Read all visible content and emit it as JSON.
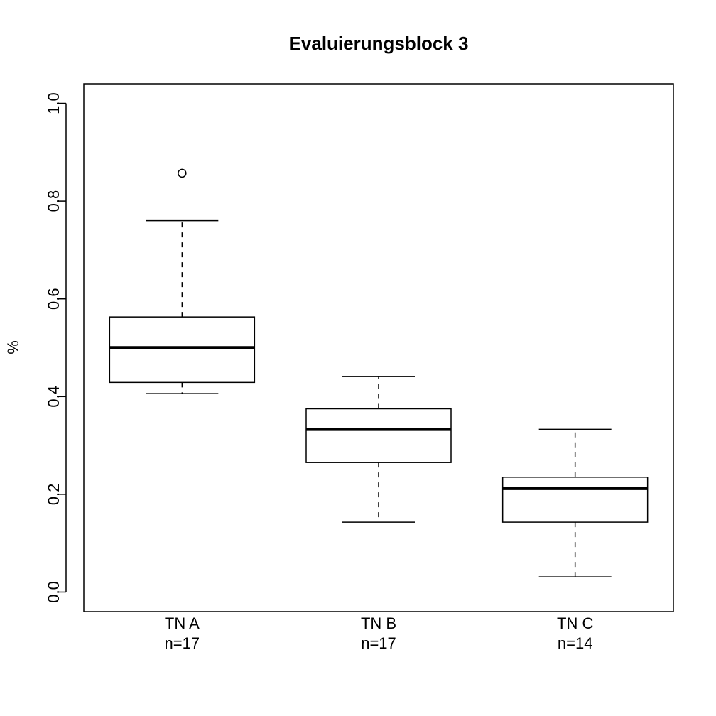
{
  "chart_data": {
    "type": "boxplot",
    "title": "Evaluierungsblock 3",
    "xlabel": "",
    "ylabel": "%",
    "ylim": [
      -0.04,
      1.04
    ],
    "yticks": [
      0.0,
      0.2,
      0.4,
      0.6,
      0.8,
      1.0
    ],
    "ytick_labels": [
      "0.0",
      "0.2",
      "0.4",
      "0.6",
      "0.8",
      "1.0"
    ],
    "grid": false,
    "categories": [
      "TN A",
      "TN B",
      "TN C"
    ],
    "category_sublabels": [
      "n=17",
      "n=17",
      "n=14"
    ],
    "boxes": [
      {
        "whisker_low": 0.406,
        "q1": 0.429,
        "median": 0.5,
        "q3": 0.563,
        "whisker_high": 0.76,
        "outliers": [
          0.857
        ]
      },
      {
        "whisker_low": 0.143,
        "q1": 0.265,
        "median": 0.333,
        "q3": 0.375,
        "whisker_high": 0.441,
        "outliers": []
      },
      {
        "whisker_low": 0.031,
        "q1": 0.143,
        "median": 0.212,
        "q3": 0.235,
        "whisker_high": 0.333,
        "outliers": []
      }
    ]
  }
}
